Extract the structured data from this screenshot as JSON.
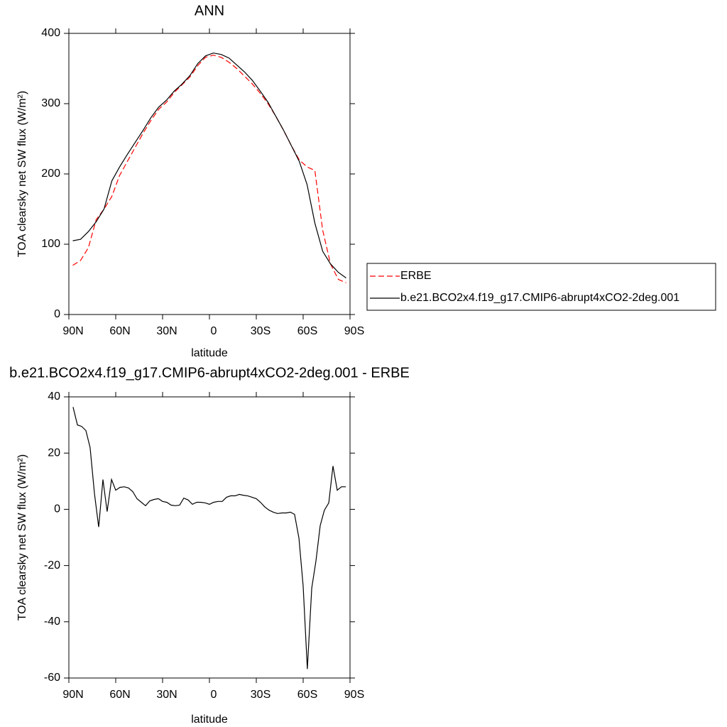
{
  "chart_data": [
    {
      "type": "line",
      "title": "ANN",
      "xlabel": "latitude",
      "ylabel": "TOA clearsky net SW flux (W/m²)",
      "x": [
        87.5,
        82.5,
        77.5,
        72.5,
        67.5,
        62.5,
        57.5,
        52.5,
        47.5,
        42.5,
        37.5,
        32.5,
        27.5,
        22.5,
        17.5,
        12.5,
        7.5,
        2.5,
        -2.5,
        -7.5,
        -12.5,
        -17.5,
        -22.5,
        -27.5,
        -32.5,
        -37.5,
        -42.5,
        -47.5,
        -52.5,
        -57.5,
        -62.5,
        -67.5,
        -72.5,
        -77.5,
        -82.5,
        -87.5
      ],
      "series": [
        {
          "name": "ERBE",
          "color": "#ff0000",
          "dash": "dashed",
          "values": [
            70,
            77,
            95,
            135,
            150,
            168,
            198,
            218,
            238,
            258,
            276,
            292,
            302,
            316,
            327,
            338,
            354,
            366,
            369,
            366,
            359,
            350,
            339,
            328,
            315,
            300,
            282,
            262,
            240,
            220,
            210,
            205,
            120,
            72,
            50,
            45
          ]
        },
        {
          "name": "b.e21.BCO2x4.f19_g17.CMIP6-abrupt4xCO2-2deg.001",
          "color": "#000000",
          "dash": "solid",
          "values": [
            105,
            107,
            118,
            132,
            150,
            190,
            210,
            228,
            245,
            262,
            280,
            295,
            305,
            318,
            328,
            340,
            357,
            368,
            372,
            370,
            365,
            355,
            345,
            333,
            318,
            302,
            282,
            262,
            240,
            218,
            185,
            130,
            90,
            72,
            60,
            52
          ]
        }
      ],
      "xlim": [
        90,
        -90
      ],
      "xticks": [
        {
          "value": 90,
          "label": "90N"
        },
        {
          "value": 60,
          "label": "60N"
        },
        {
          "value": 30,
          "label": "30N"
        },
        0,
        {
          "value": -30,
          "label": "30S"
        },
        {
          "value": -60,
          "label": "60S"
        },
        {
          "value": -90,
          "label": "90S"
        }
      ],
      "ylim": [
        0,
        400
      ],
      "yticks": [
        0,
        100,
        200,
        300,
        400
      ],
      "legend": "right"
    },
    {
      "type": "line",
      "title": "b.e21.BCO2x4.f19_g17.CMIP6-abrupt4xCO2-2deg.001 - ERBE",
      "xlabel": "latitude",
      "ylabel": "TOA clearsky net SW flux (W/m²)",
      "x": [
        87.3,
        84.5,
        81.8,
        79.1,
        76.4,
        73.6,
        70.9,
        68.2,
        65.5,
        62.7,
        60,
        57.3,
        54.5,
        51.8,
        49.1,
        46.4,
        43.6,
        40.9,
        38.2,
        35.5,
        32.7,
        30,
        27.3,
        24.5,
        21.8,
        19.1,
        16.4,
        13.6,
        10.9,
        8.2,
        5.5,
        2.7,
        0,
        -2.7,
        -5.5,
        -8.2,
        -10.9,
        -13.6,
        -16.4,
        -19.1,
        -21.8,
        -24.5,
        -27.3,
        -30,
        -32.7,
        -35.5,
        -38.2,
        -40.9,
        -43.6,
        -46.4,
        -49.1,
        -51.8,
        -54.5,
        -57.3,
        -60,
        -62.7,
        -65.5,
        -68.2,
        -70.9,
        -73.6,
        -76.4,
        -79.1,
        -81.8,
        -84.5,
        -87.3
      ],
      "values": [
        36.4,
        30,
        29.5,
        28,
        22,
        5.5,
        -6.3,
        10.6,
        -0.8,
        10.6,
        6.8,
        7.8,
        8,
        7.6,
        6.3,
        3.8,
        2.5,
        1.3,
        3,
        3.5,
        3.8,
        2.8,
        2.5,
        1.5,
        1.3,
        1.5,
        4,
        3.3,
        1.8,
        2.5,
        2.5,
        2.3,
        1.8,
        2.5,
        2.8,
        2.8,
        4.3,
        4.8,
        4.8,
        5.3,
        5,
        4.8,
        4.3,
        3.8,
        2.5,
        0.8,
        -0.3,
        -1,
        -1.5,
        -1.3,
        -1.3,
        -1,
        -1.8,
        -10.3,
        -27.3,
        -56.8,
        -28,
        -18.4,
        -5.8,
        -0.3,
        2.3,
        15.4,
        6.8,
        8,
        8
      ],
      "color": "#000000",
      "xlim": [
        90,
        -90
      ],
      "xticks": [
        {
          "value": 90,
          "label": "90N"
        },
        {
          "value": 60,
          "label": "60N"
        },
        {
          "value": 30,
          "label": "30N"
        },
        0,
        {
          "value": -30,
          "label": "30S"
        },
        {
          "value": -60,
          "label": "60S"
        },
        {
          "value": -90,
          "label": "90S"
        }
      ],
      "ylim": [
        -60,
        40
      ],
      "yticks": [
        -60,
        -40,
        -20,
        0,
        20,
        40
      ]
    }
  ]
}
